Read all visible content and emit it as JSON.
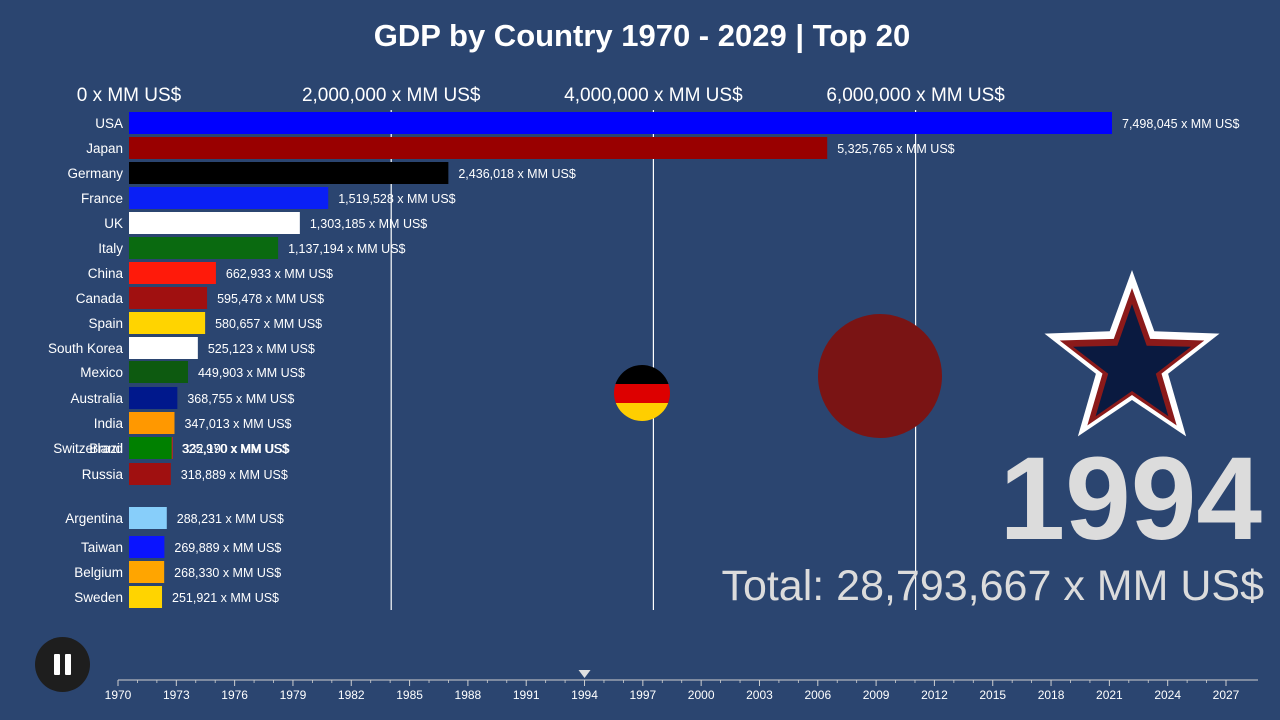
{
  "chart_data": {
    "type": "bar",
    "title": "GDP by Country 1970 - 2029 | Top 20",
    "unit": "x MM US$",
    "xlim": [
      0,
      7500000
    ],
    "x_ticks": [
      {
        "value": 0,
        "label": "0 x MM US$"
      },
      {
        "value": 2000000,
        "label": "2,000,000 x MM US$"
      },
      {
        "value": 4000000,
        "label": "4,000,000 x MM US$"
      },
      {
        "value": 6000000,
        "label": "6,000,000 x MM US$"
      }
    ],
    "categories": [
      "USA",
      "Japan",
      "Germany",
      "France",
      "UK",
      "Italy",
      "China",
      "Canada",
      "Spain",
      "South Korea",
      "Mexico",
      "Australia",
      "India",
      "Switzerland",
      "Brazil",
      "Russia",
      "Argentina",
      "Taiwan",
      "Belgium",
      "Sweden"
    ],
    "values": [
      7498045,
      5325765,
      2436018,
      1519528,
      1303185,
      1137194,
      662933,
      595478,
      580657,
      525123,
      449903,
      368755,
      347013,
      332190,
      325970,
      318889,
      288231,
      269889,
      268330,
      251921
    ],
    "value_labels": [
      "7,498,045 x MM US$",
      "5,325,765 x MM US$",
      "2,436,018 x MM US$",
      "1,519,528 x MM US$",
      "1,303,185 x MM US$",
      "1,137,194 x MM US$",
      "662,933 x MM US$",
      "595,478 x MM US$",
      "580,657 x MM US$",
      "525,123 x MM US$",
      "449,903 x MM US$",
      "368,755 x MM US$",
      "347,013 x MM US$",
      "332,190 x MM US$",
      "325,970 x MM US$",
      "318,889 x MM US$",
      "288,231 x MM US$",
      "269,889 x MM US$",
      "268,330 x MM US$",
      "251,921 x MM US$"
    ],
    "colors": [
      "#0000ff",
      "#990000",
      "#000000",
      "#0a1ff5",
      "#ffffff",
      "#0a6a10",
      "#ff1a0a",
      "#a01010",
      "#ffd400",
      "#ffffff",
      "#0d5a10",
      "#00188c",
      "#ff9800",
      "#ff1a0a",
      "#008000",
      "#a01010",
      "#87cefa",
      "#0a14ff",
      "#ffa500",
      "#ffd400"
    ],
    "year": "1994",
    "total": "Total: 28,793,667 x MM US$"
  },
  "timeline": {
    "years": [
      "1970",
      "1973",
      "1976",
      "1979",
      "1982",
      "1985",
      "1988",
      "1991",
      "1994",
      "1997",
      "2000",
      "2003",
      "2006",
      "2009",
      "2012",
      "2015",
      "2018",
      "2021",
      "2024",
      "2027"
    ],
    "current_year": 1994,
    "colors": {
      "line": "#d0d0d0",
      "marker": "#e0e0e0"
    }
  },
  "decor": {
    "japan_circle_color": "#7a1414",
    "star_colors": [
      "#ffffff",
      "#8b1a1a",
      "#0a1a40"
    ]
  }
}
